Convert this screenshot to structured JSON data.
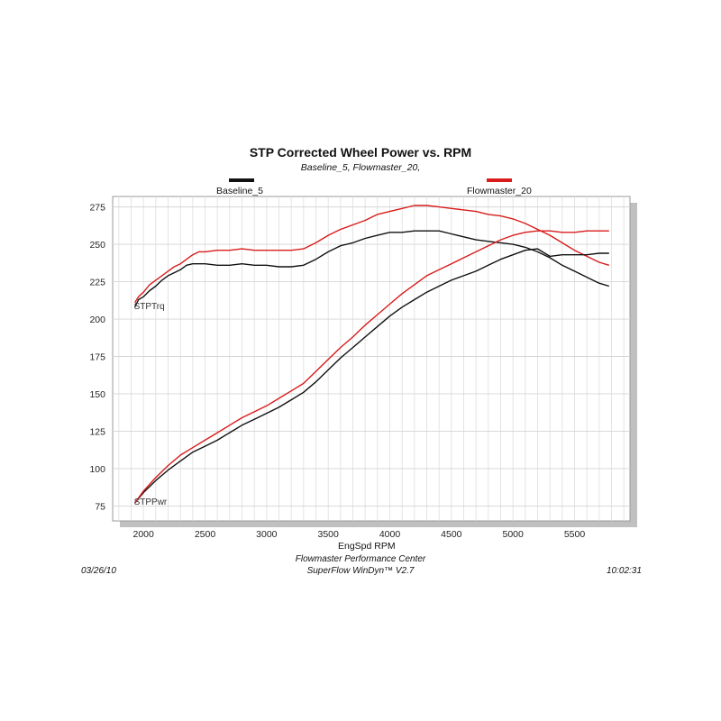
{
  "chart_data": {
    "type": "line",
    "title": "STP Corrected Wheel Power vs. RPM",
    "subtitle": "Baseline_5, Flowmaster_20,",
    "xlabel": "EngSpd RPM",
    "ylabel": "",
    "xlim": [
      1750,
      5950
    ],
    "ylim": [
      65,
      282
    ],
    "x_ticks": [
      2000,
      2500,
      3000,
      3500,
      4000,
      4500,
      5000,
      5500
    ],
    "y_ticks": [
      75,
      100,
      125,
      150,
      175,
      200,
      225,
      250,
      275
    ],
    "grid": true,
    "legend_placement": "top",
    "curve_labels": [
      "STPTrq",
      "STPPwr"
    ],
    "series": [
      {
        "name": "Baseline_5",
        "quantity": "STPTrq",
        "color": "#111111",
        "points": [
          [
            1930,
            208
          ],
          [
            1960,
            213
          ],
          [
            2000,
            215
          ],
          [
            2050,
            219
          ],
          [
            2100,
            222
          ],
          [
            2150,
            226
          ],
          [
            2200,
            229
          ],
          [
            2250,
            231
          ],
          [
            2300,
            233
          ],
          [
            2350,
            236
          ],
          [
            2400,
            237
          ],
          [
            2500,
            237
          ],
          [
            2600,
            236
          ],
          [
            2700,
            236
          ],
          [
            2800,
            237
          ],
          [
            2900,
            236
          ],
          [
            3000,
            236
          ],
          [
            3100,
            235
          ],
          [
            3200,
            235
          ],
          [
            3300,
            236
          ],
          [
            3400,
            240
          ],
          [
            3500,
            245
          ],
          [
            3600,
            249
          ],
          [
            3700,
            251
          ],
          [
            3800,
            254
          ],
          [
            3900,
            256
          ],
          [
            4000,
            258
          ],
          [
            4100,
            258
          ],
          [
            4200,
            259
          ],
          [
            4300,
            259
          ],
          [
            4400,
            259
          ],
          [
            4500,
            257
          ],
          [
            4600,
            255
          ],
          [
            4700,
            253
          ],
          [
            4800,
            252
          ],
          [
            4900,
            251
          ],
          [
            5000,
            250
          ],
          [
            5100,
            248
          ],
          [
            5200,
            245
          ],
          [
            5300,
            241
          ],
          [
            5400,
            236
          ],
          [
            5500,
            232
          ],
          [
            5600,
            228
          ],
          [
            5700,
            224
          ],
          [
            5780,
            222
          ]
        ]
      },
      {
        "name": "Flowmaster_20",
        "quantity": "STPTrq",
        "color": "#d91b1b",
        "points": [
          [
            1930,
            211
          ],
          [
            1960,
            215
          ],
          [
            2000,
            218
          ],
          [
            2050,
            223
          ],
          [
            2100,
            226
          ],
          [
            2150,
            229
          ],
          [
            2200,
            232
          ],
          [
            2250,
            235
          ],
          [
            2300,
            237
          ],
          [
            2350,
            240
          ],
          [
            2400,
            243
          ],
          [
            2450,
            245
          ],
          [
            2500,
            245
          ],
          [
            2600,
            246
          ],
          [
            2700,
            246
          ],
          [
            2800,
            247
          ],
          [
            2900,
            246
          ],
          [
            3000,
            246
          ],
          [
            3100,
            246
          ],
          [
            3200,
            246
          ],
          [
            3300,
            247
          ],
          [
            3400,
            251
          ],
          [
            3500,
            256
          ],
          [
            3600,
            260
          ],
          [
            3700,
            263
          ],
          [
            3800,
            266
          ],
          [
            3900,
            270
          ],
          [
            4000,
            272
          ],
          [
            4100,
            274
          ],
          [
            4200,
            276
          ],
          [
            4300,
            276
          ],
          [
            4400,
            275
          ],
          [
            4500,
            274
          ],
          [
            4600,
            273
          ],
          [
            4700,
            272
          ],
          [
            4800,
            270
          ],
          [
            4900,
            269
          ],
          [
            5000,
            267
          ],
          [
            5100,
            264
          ],
          [
            5200,
            260
          ],
          [
            5300,
            256
          ],
          [
            5400,
            251
          ],
          [
            5500,
            246
          ],
          [
            5600,
            242
          ],
          [
            5700,
            238
          ],
          [
            5780,
            236
          ]
        ]
      },
      {
        "name": "Baseline_5",
        "quantity": "STPPwr",
        "color": "#111111",
        "points": [
          [
            1930,
            77
          ],
          [
            2000,
            84
          ],
          [
            2100,
            92
          ],
          [
            2200,
            99
          ],
          [
            2300,
            105
          ],
          [
            2400,
            111
          ],
          [
            2500,
            115
          ],
          [
            2600,
            119
          ],
          [
            2700,
            124
          ],
          [
            2800,
            129
          ],
          [
            2900,
            133
          ],
          [
            3000,
            137
          ],
          [
            3100,
            141
          ],
          [
            3200,
            146
          ],
          [
            3300,
            151
          ],
          [
            3400,
            158
          ],
          [
            3500,
            166
          ],
          [
            3600,
            174
          ],
          [
            3700,
            181
          ],
          [
            3800,
            188
          ],
          [
            3900,
            195
          ],
          [
            4000,
            202
          ],
          [
            4100,
            208
          ],
          [
            4200,
            213
          ],
          [
            4300,
            218
          ],
          [
            4400,
            222
          ],
          [
            4500,
            226
          ],
          [
            4600,
            229
          ],
          [
            4700,
            232
          ],
          [
            4800,
            236
          ],
          [
            4900,
            240
          ],
          [
            5000,
            243
          ],
          [
            5100,
            246
          ],
          [
            5200,
            247
          ],
          [
            5300,
            242
          ],
          [
            5400,
            243
          ],
          [
            5500,
            243
          ],
          [
            5600,
            243
          ],
          [
            5700,
            244
          ],
          [
            5780,
            244
          ]
        ]
      },
      {
        "name": "Flowmaster_20",
        "quantity": "STPPwr",
        "color": "#d91b1b",
        "points": [
          [
            1930,
            77
          ],
          [
            2000,
            85
          ],
          [
            2100,
            94
          ],
          [
            2200,
            102
          ],
          [
            2300,
            109
          ],
          [
            2400,
            114
          ],
          [
            2500,
            119
          ],
          [
            2600,
            124
          ],
          [
            2700,
            129
          ],
          [
            2800,
            134
          ],
          [
            2900,
            138
          ],
          [
            3000,
            142
          ],
          [
            3100,
            147
          ],
          [
            3200,
            152
          ],
          [
            3300,
            157
          ],
          [
            3400,
            165
          ],
          [
            3500,
            173
          ],
          [
            3600,
            181
          ],
          [
            3700,
            188
          ],
          [
            3800,
            196
          ],
          [
            3900,
            203
          ],
          [
            4000,
            210
          ],
          [
            4100,
            217
          ],
          [
            4200,
            223
          ],
          [
            4300,
            229
          ],
          [
            4400,
            233
          ],
          [
            4500,
            237
          ],
          [
            4600,
            241
          ],
          [
            4700,
            245
          ],
          [
            4800,
            249
          ],
          [
            4900,
            253
          ],
          [
            5000,
            256
          ],
          [
            5100,
            258
          ],
          [
            5200,
            259
          ],
          [
            5300,
            259
          ],
          [
            5400,
            258
          ],
          [
            5500,
            258
          ],
          [
            5600,
            259
          ],
          [
            5700,
            259
          ],
          [
            5780,
            259
          ]
        ]
      }
    ]
  },
  "legend": [
    {
      "name": "Baseline_5",
      "color": "#111111"
    },
    {
      "name": "Flowmaster_20",
      "color": "#d91b1b"
    }
  ],
  "footer": {
    "date": "03/26/10",
    "center_line1": "Flowmaster Performance Center",
    "center_line2": "SuperFlow WinDyn™ V2.7",
    "time": "10:02:31"
  }
}
